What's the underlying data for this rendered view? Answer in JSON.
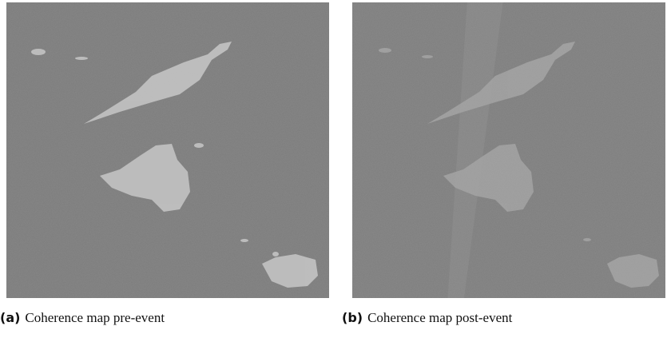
{
  "figures": [
    {
      "label": "(a)",
      "caption": "Coherence map pre-event"
    },
    {
      "label": "(b)",
      "caption": "Coherence map post-event"
    }
  ]
}
